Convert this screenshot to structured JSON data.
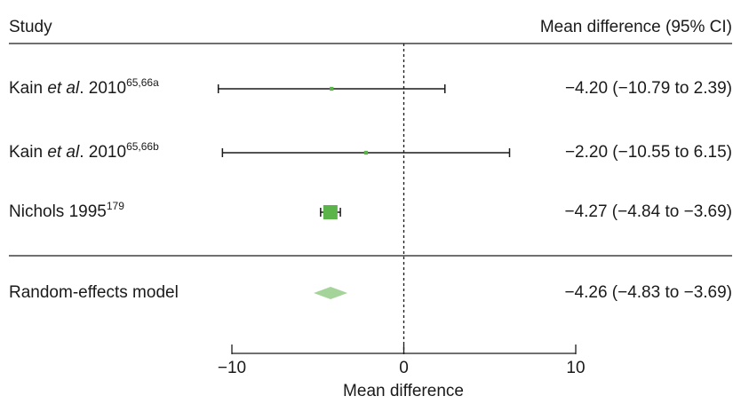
{
  "chart_data": {
    "type": "forest",
    "header": {
      "study": "Study",
      "effect": "Mean difference (95% CI)"
    },
    "xlabel": "Mean difference",
    "xlim": [
      -10,
      10
    ],
    "xticks": [
      "−10",
      "0",
      "10"
    ],
    "xtick_values": [
      -10,
      0,
      10
    ],
    "reference_line": 0,
    "studies": [
      {
        "name": "Kain ",
        "name_italic": "et al",
        "name_rest": ". 2010",
        "superscript": "65,66a",
        "estimate": -4.2,
        "lower": -10.79,
        "upper": 2.39,
        "weight": 0.1,
        "ci_text": "−4.20 (−10.79 to 2.39)"
      },
      {
        "name": "Kain ",
        "name_italic": "et al",
        "name_rest": ". 2010",
        "superscript": "65,66b",
        "estimate": -2.2,
        "lower": -10.55,
        "upper": 6.15,
        "weight": 0.1,
        "ci_text": "−2.20 (−10.55 to 6.15)"
      },
      {
        "name": "Nichols 1995",
        "name_italic": "",
        "name_rest": "",
        "superscript": "179",
        "estimate": -4.27,
        "lower": -4.84,
        "upper": -3.69,
        "weight": 1.0,
        "ci_text": "−4.27 (−4.84 to −3.69)"
      }
    ],
    "summary": {
      "name": "Random-effects model",
      "estimate": -4.26,
      "lower": -4.83,
      "upper": -3.69,
      "ci_text": "−4.26 (−4.83 to −3.69)"
    },
    "colors": {
      "marker": "#5ab44a",
      "diamond": "#a5d49a",
      "line": "#1a1a1a"
    }
  }
}
